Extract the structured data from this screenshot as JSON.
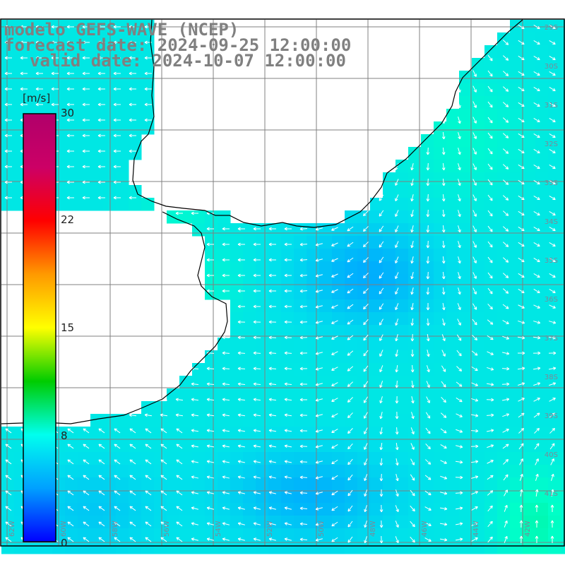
{
  "title": {
    "model": "modelo GEFS-WAVE (NCEP)",
    "forecast": "forecast date: 2024-09-25 12:00:00",
    "valid": "valid date: 2024-10-07 12:00:00"
  },
  "colorbar": {
    "unit": "[m/s]",
    "min": 0,
    "max": 30,
    "ticks": [
      {
        "value": 30,
        "label": "30"
      },
      {
        "value": 22,
        "label": "22"
      },
      {
        "value": 15,
        "label": "15"
      },
      {
        "value": 8,
        "label": "8"
      },
      {
        "value": 0,
        "label": "0"
      }
    ],
    "colors": [
      "#0000ff",
      "#00a0ff",
      "#00ffee",
      "#00cc00",
      "#ffff00",
      "#ff9900",
      "#ff0000",
      "#cc0066",
      "#b0006a"
    ]
  },
  "map": {
    "field": "wind speed",
    "land_color": "#ffffff",
    "coast_color": "#000000",
    "grid_color": "#808080",
    "arrow_color": "#ffffff",
    "lat_labels": [
      "29S",
      "30S",
      "31S",
      "32S",
      "33S",
      "34S",
      "35S",
      "36S",
      "37S",
      "38S",
      "39S",
      "40S",
      "41S"
    ],
    "lon_labels": [
      "62W",
      "60W",
      "58W",
      "56W",
      "54W",
      "52W",
      "50W",
      "48W",
      "46W",
      "44W",
      "42W"
    ]
  }
}
